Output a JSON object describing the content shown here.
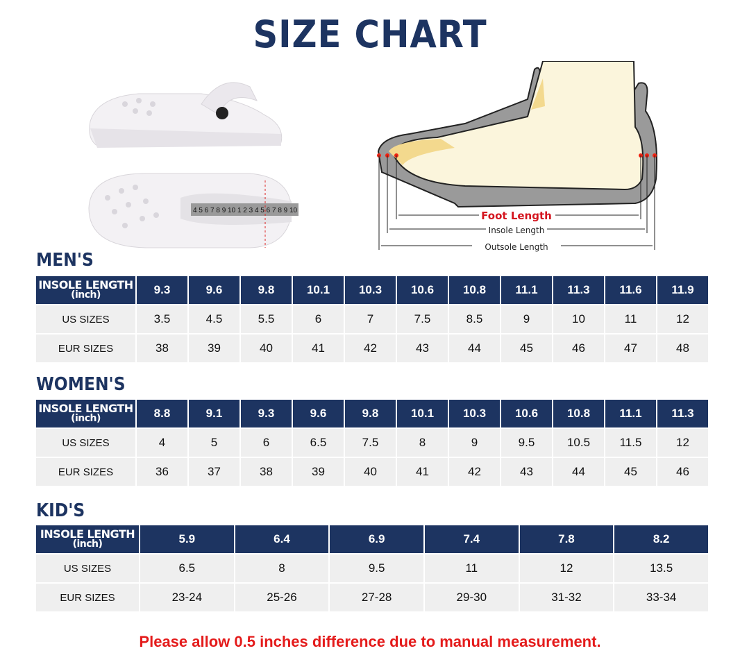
{
  "title": "SIZE CHART",
  "diagram": {
    "foot_length": "Foot Length",
    "insole_length": "Insole Length",
    "outsole_length": "Outsole Length"
  },
  "tape_digits": "4 5 6 7 8 9 10 1 2 3 4 5 6 7 8 9 10",
  "row_labels": {
    "insole": "INSOLE LENGTH",
    "unit": "(inch)",
    "us": "US SIZES",
    "eur": "EUR SIZES"
  },
  "tables": [
    {
      "title": "MEN'S",
      "insole": [
        "9.3",
        "9.6",
        "9.8",
        "10.1",
        "10.3",
        "10.6",
        "10.8",
        "11.1",
        "11.3",
        "11.6",
        "11.9"
      ],
      "us": [
        "3.5",
        "4.5",
        "5.5",
        "6",
        "7",
        "7.5",
        "8.5",
        "9",
        "10",
        "11",
        "12"
      ],
      "eur": [
        "38",
        "39",
        "40",
        "41",
        "42",
        "43",
        "44",
        "45",
        "46",
        "47",
        "48"
      ]
    },
    {
      "title": "WOMEN'S",
      "insole": [
        "8.8",
        "9.1",
        "9.3",
        "9.6",
        "9.8",
        "10.1",
        "10.3",
        "10.6",
        "10.8",
        "11.1",
        "11.3"
      ],
      "us": [
        "4",
        "5",
        "6",
        "6.5",
        "7.5",
        "8",
        "9",
        "9.5",
        "10.5",
        "11.5",
        "12"
      ],
      "eur": [
        "36",
        "37",
        "38",
        "39",
        "40",
        "41",
        "42",
        "43",
        "44",
        "45",
        "46"
      ]
    },
    {
      "title": "KID'S",
      "insole": [
        "5.9",
        "6.4",
        "6.9",
        "7.4",
        "7.8",
        "8.2"
      ],
      "us": [
        "6.5",
        "8",
        "9.5",
        "11",
        "12",
        "13.5"
      ],
      "eur": [
        "23-24",
        "25-26",
        "27-28",
        "29-30",
        "31-32",
        "33-34"
      ]
    }
  ],
  "note": "Please allow 0.5 inches difference due to manual measurement.",
  "colors": {
    "header": "#1d3461",
    "note": "#e41b1b",
    "row": "#efefef"
  }
}
